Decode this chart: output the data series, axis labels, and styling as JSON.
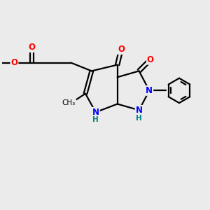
{
  "bg_color": "#ebebeb",
  "bond_color": "#000000",
  "N_color": "#0000ff",
  "O_color": "#ff0000",
  "line_width": 1.6,
  "font_size_atom": 8.5,
  "font_size_small": 7.5,
  "xlim": [
    0,
    10
  ],
  "ylim": [
    0,
    10
  ],
  "figsize": [
    3.0,
    3.0
  ],
  "dpi": 100
}
